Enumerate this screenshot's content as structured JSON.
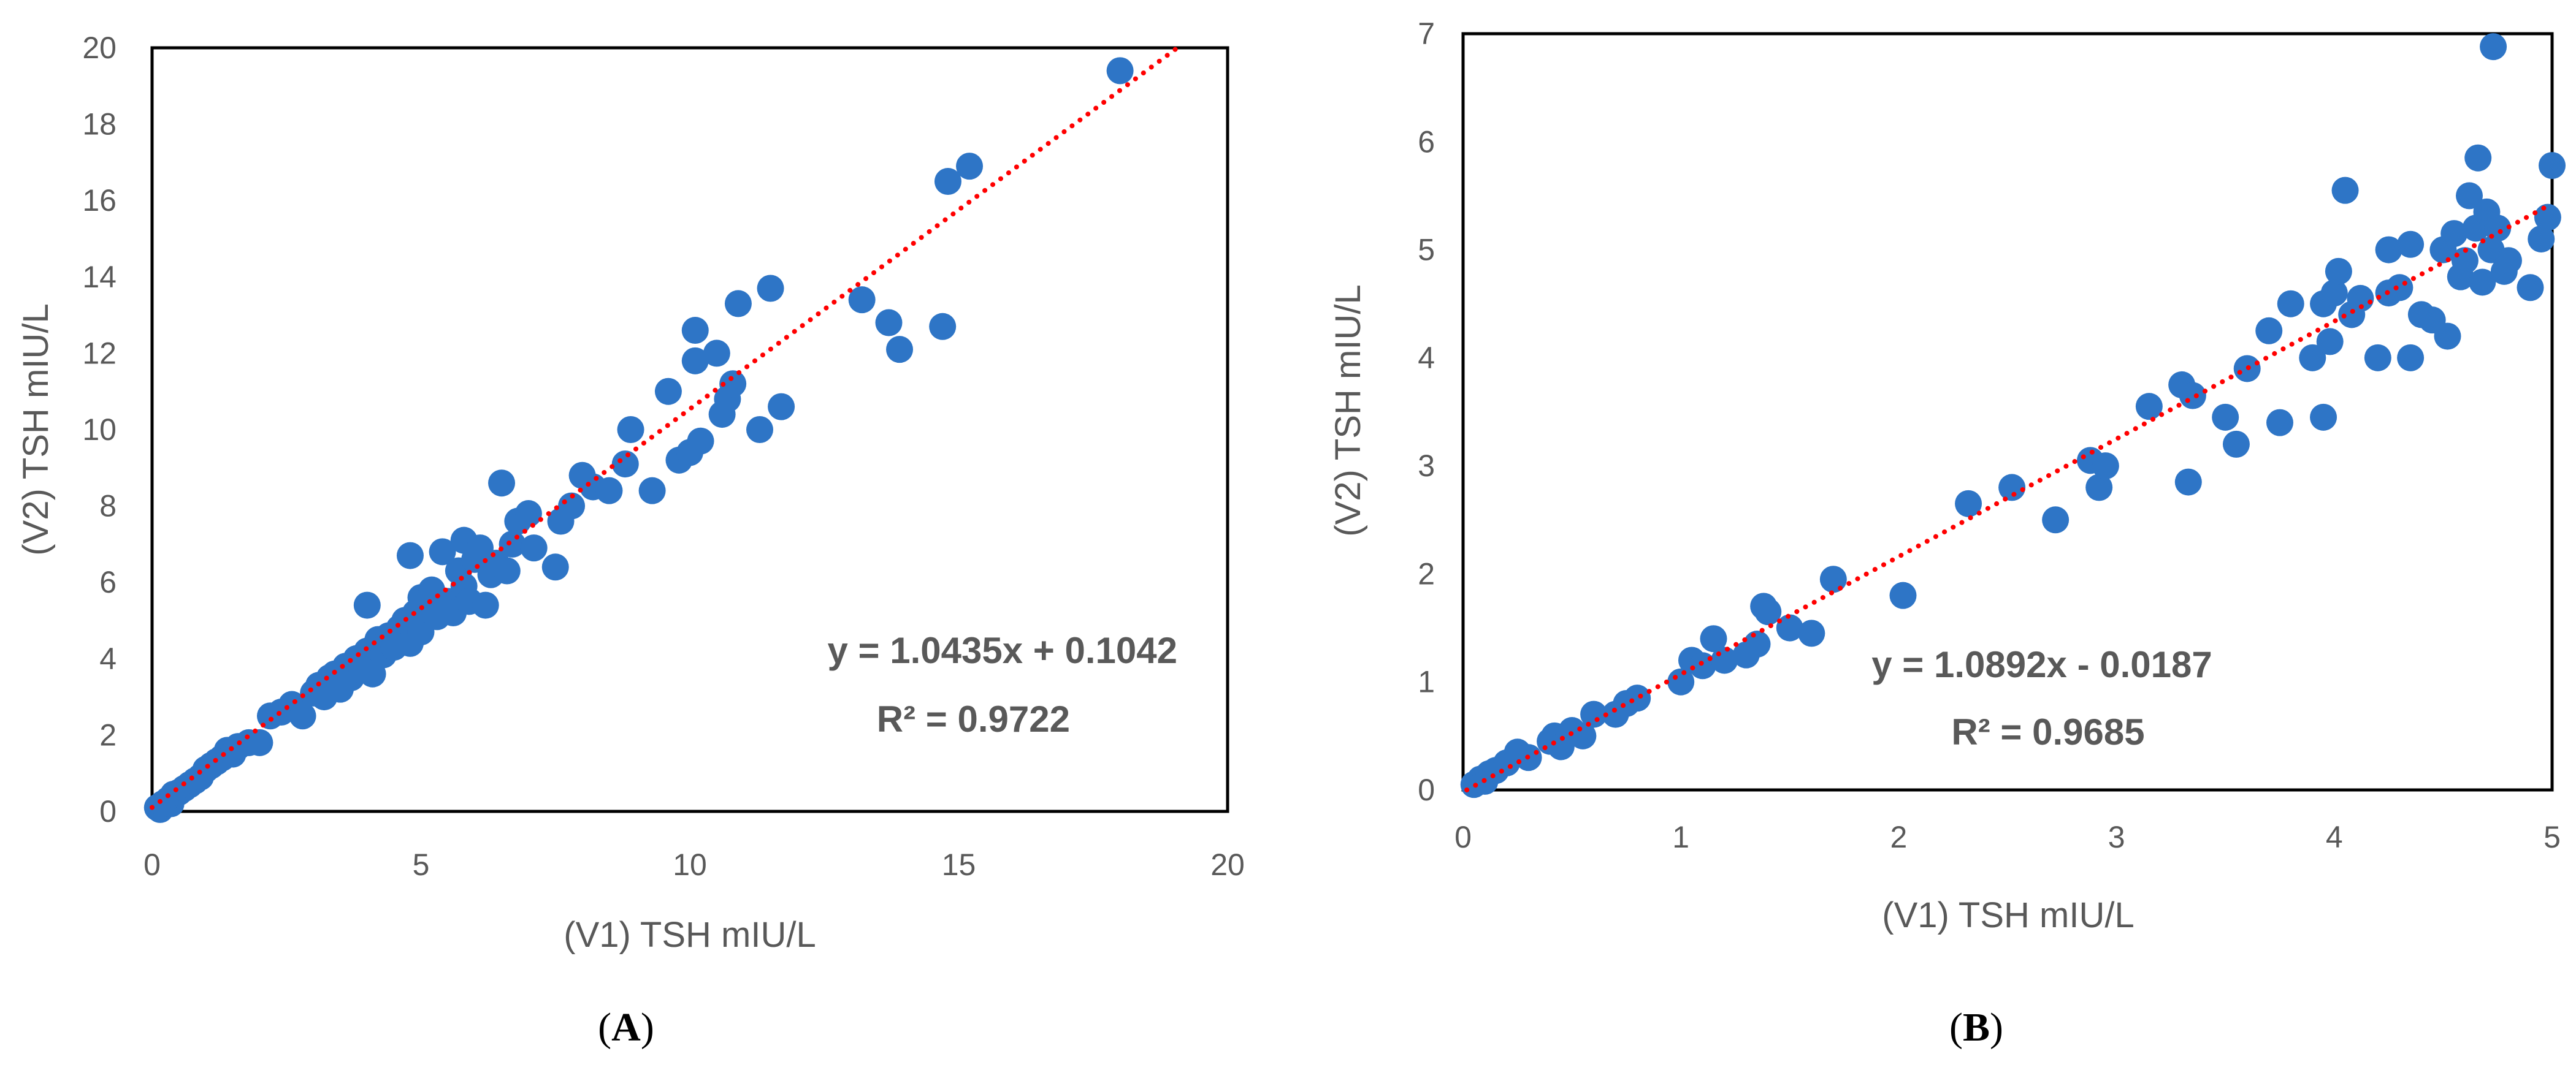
{
  "colors": {
    "points": "#2e75c6",
    "trendline": "#ff0000",
    "frame": "#000000",
    "text": "#595959"
  },
  "chart_data": [
    {
      "type": "scatter",
      "panel": "A",
      "panel_label": {
        "open": "(",
        "letter": "A",
        "close": ")"
      },
      "xlabel": "(V1) TSH mIU/L",
      "ylabel": "(V2) TSH mIU/L",
      "xlim": [
        0,
        20
      ],
      "ylim": [
        0,
        20
      ],
      "xticks": [
        "0",
        "5",
        "10",
        "15",
        "20"
      ],
      "yticks": [
        "0",
        "2",
        "4",
        "6",
        "8",
        "10",
        "12",
        "14",
        "16",
        "18",
        "20"
      ],
      "grid": false,
      "trendline": {
        "slope": 1.0435,
        "intercept": 0.1042,
        "style": "dotted"
      },
      "equation_text": "y = 1.0435x + 0.1042",
      "r2_text": "R² = 0.9722",
      "points": [
        [
          0.1,
          0.1
        ],
        [
          0.15,
          0.05
        ],
        [
          0.2,
          0.2
        ],
        [
          0.3,
          0.3
        ],
        [
          0.35,
          0.2
        ],
        [
          0.4,
          0.45
        ],
        [
          0.5,
          0.5
        ],
        [
          0.6,
          0.6
        ],
        [
          0.7,
          0.7
        ],
        [
          0.8,
          0.8
        ],
        [
          0.9,
          0.9
        ],
        [
          1.0,
          1.1
        ],
        [
          1.1,
          1.2
        ],
        [
          1.2,
          1.3
        ],
        [
          1.3,
          1.4
        ],
        [
          1.4,
          1.6
        ],
        [
          1.5,
          1.5
        ],
        [
          1.6,
          1.7
        ],
        [
          1.8,
          1.8
        ],
        [
          2.0,
          1.8
        ],
        [
          2.2,
          2.5
        ],
        [
          2.4,
          2.6
        ],
        [
          2.6,
          2.8
        ],
        [
          2.8,
          2.5
        ],
        [
          3.0,
          3.1
        ],
        [
          3.1,
          3.3
        ],
        [
          3.2,
          3.0
        ],
        [
          3.3,
          3.5
        ],
        [
          3.4,
          3.6
        ],
        [
          3.5,
          3.2
        ],
        [
          3.6,
          3.8
        ],
        [
          3.7,
          3.5
        ],
        [
          3.8,
          4.0
        ],
        [
          3.9,
          3.7
        ],
        [
          4.0,
          4.2
        ],
        [
          4.0,
          5.4
        ],
        [
          4.1,
          3.6
        ],
        [
          4.2,
          4.5
        ],
        [
          4.3,
          4.1
        ],
        [
          4.4,
          4.6
        ],
        [
          4.5,
          4.3
        ],
        [
          4.6,
          4.8
        ],
        [
          4.7,
          5.0
        ],
        [
          4.8,
          4.4
        ],
        [
          4.8,
          6.7
        ],
        [
          4.9,
          5.2
        ],
        [
          5.0,
          5.6
        ],
        [
          5.0,
          4.7
        ],
        [
          5.1,
          5.3
        ],
        [
          5.2,
          5.8
        ],
        [
          5.3,
          5.1
        ],
        [
          5.4,
          6.8
        ],
        [
          5.5,
          5.5
        ],
        [
          5.6,
          5.2
        ],
        [
          5.7,
          6.3
        ],
        [
          5.8,
          5.9
        ],
        [
          5.8,
          7.1
        ],
        [
          5.9,
          5.5
        ],
        [
          6.0,
          6.6
        ],
        [
          6.1,
          6.9
        ],
        [
          6.2,
          5.4
        ],
        [
          6.3,
          6.2
        ],
        [
          6.4,
          6.5
        ],
        [
          6.5,
          8.6
        ],
        [
          6.6,
          6.3
        ],
        [
          6.7,
          7.0
        ],
        [
          6.8,
          7.6
        ],
        [
          7.0,
          7.8
        ],
        [
          7.1,
          6.9
        ],
        [
          7.5,
          6.4
        ],
        [
          7.6,
          7.6
        ],
        [
          7.8,
          8.0
        ],
        [
          8.0,
          8.8
        ],
        [
          8.2,
          8.5
        ],
        [
          8.5,
          8.4
        ],
        [
          8.8,
          9.1
        ],
        [
          8.9,
          10.0
        ],
        [
          9.3,
          8.4
        ],
        [
          9.6,
          11.0
        ],
        [
          9.8,
          9.2
        ],
        [
          10.0,
          9.4
        ],
        [
          10.1,
          11.8
        ],
        [
          10.1,
          12.6
        ],
        [
          10.2,
          9.7
        ],
        [
          10.5,
          12.0
        ],
        [
          10.6,
          10.4
        ],
        [
          10.7,
          10.8
        ],
        [
          10.8,
          11.2
        ],
        [
          10.9,
          13.3
        ],
        [
          11.3,
          10.0
        ],
        [
          11.5,
          13.7
        ],
        [
          11.7,
          10.6
        ],
        [
          13.2,
          13.4
        ],
        [
          13.7,
          12.8
        ],
        [
          13.9,
          12.1
        ],
        [
          14.7,
          12.7
        ],
        [
          14.8,
          16.5
        ],
        [
          15.2,
          16.9
        ],
        [
          18.0,
          19.4
        ]
      ]
    },
    {
      "type": "scatter",
      "panel": "B",
      "panel_label": {
        "open": "(",
        "letter": "B",
        "close": ")"
      },
      "xlabel": "(V1) TSH mIU/L",
      "ylabel": "(V2) TSH mIU/L",
      "xlim": [
        0,
        5
      ],
      "ylim": [
        0,
        7
      ],
      "xticks": [
        "0",
        "1",
        "2",
        "3",
        "4",
        "5"
      ],
      "yticks": [
        "0",
        "1",
        "2",
        "3",
        "4",
        "5",
        "6",
        "7"
      ],
      "grid": false,
      "trendline": {
        "slope": 1.0892,
        "intercept": -0.0187,
        "style": "dotted"
      },
      "equation_text": "y = 1.0892x  - 0.0187",
      "r2_text": "R² = 0.9685",
      "points": [
        [
          0.05,
          0.05
        ],
        [
          0.08,
          0.1
        ],
        [
          0.1,
          0.08
        ],
        [
          0.12,
          0.15
        ],
        [
          0.15,
          0.18
        ],
        [
          0.2,
          0.25
        ],
        [
          0.25,
          0.35
        ],
        [
          0.3,
          0.3
        ],
        [
          0.4,
          0.45
        ],
        [
          0.42,
          0.5
        ],
        [
          0.45,
          0.4
        ],
        [
          0.5,
          0.55
        ],
        [
          0.55,
          0.5
        ],
        [
          0.6,
          0.7
        ],
        [
          0.7,
          0.7
        ],
        [
          0.75,
          0.8
        ],
        [
          0.8,
          0.85
        ],
        [
          1.0,
          1.0
        ],
        [
          1.05,
          1.2
        ],
        [
          1.1,
          1.15
        ],
        [
          1.15,
          1.4
        ],
        [
          1.2,
          1.2
        ],
        [
          1.3,
          1.25
        ],
        [
          1.35,
          1.35
        ],
        [
          1.38,
          1.7
        ],
        [
          1.4,
          1.65
        ],
        [
          1.5,
          1.5
        ],
        [
          1.6,
          1.45
        ],
        [
          1.7,
          1.95
        ],
        [
          2.02,
          1.8
        ],
        [
          2.32,
          2.65
        ],
        [
          2.52,
          2.8
        ],
        [
          2.72,
          2.5
        ],
        [
          2.88,
          3.05
        ],
        [
          2.92,
          2.8
        ],
        [
          2.95,
          3.0
        ],
        [
          3.15,
          3.55
        ],
        [
          3.3,
          3.75
        ],
        [
          3.33,
          2.85
        ],
        [
          3.35,
          3.65
        ],
        [
          3.5,
          3.45
        ],
        [
          3.55,
          3.2
        ],
        [
          3.6,
          3.9
        ],
        [
          3.7,
          4.25
        ],
        [
          3.75,
          3.4
        ],
        [
          3.8,
          4.5
        ],
        [
          3.9,
          4.0
        ],
        [
          3.95,
          3.45
        ],
        [
          3.95,
          4.5
        ],
        [
          3.98,
          4.15
        ],
        [
          4.0,
          4.6
        ],
        [
          4.02,
          4.8
        ],
        [
          4.05,
          5.55
        ],
        [
          4.08,
          4.4
        ],
        [
          4.12,
          4.55
        ],
        [
          4.2,
          4.0
        ],
        [
          4.25,
          4.6
        ],
        [
          4.25,
          5.0
        ],
        [
          4.3,
          4.65
        ],
        [
          4.35,
          4.0
        ],
        [
          4.35,
          5.05
        ],
        [
          4.4,
          4.4
        ],
        [
          4.45,
          4.35
        ],
        [
          4.5,
          5.0
        ],
        [
          4.52,
          4.2
        ],
        [
          4.55,
          5.15
        ],
        [
          4.58,
          4.75
        ],
        [
          4.6,
          4.9
        ],
        [
          4.62,
          5.5
        ],
        [
          4.65,
          5.2
        ],
        [
          4.66,
          5.85
        ],
        [
          4.68,
          4.7
        ],
        [
          4.7,
          5.35
        ],
        [
          4.72,
          5.0
        ],
        [
          4.73,
          6.88
        ],
        [
          4.75,
          5.2
        ],
        [
          4.78,
          4.8
        ],
        [
          4.8,
          4.9
        ],
        [
          4.9,
          4.65
        ],
        [
          4.95,
          5.1
        ],
        [
          4.98,
          5.3
        ],
        [
          5.0,
          5.78
        ]
      ]
    }
  ]
}
